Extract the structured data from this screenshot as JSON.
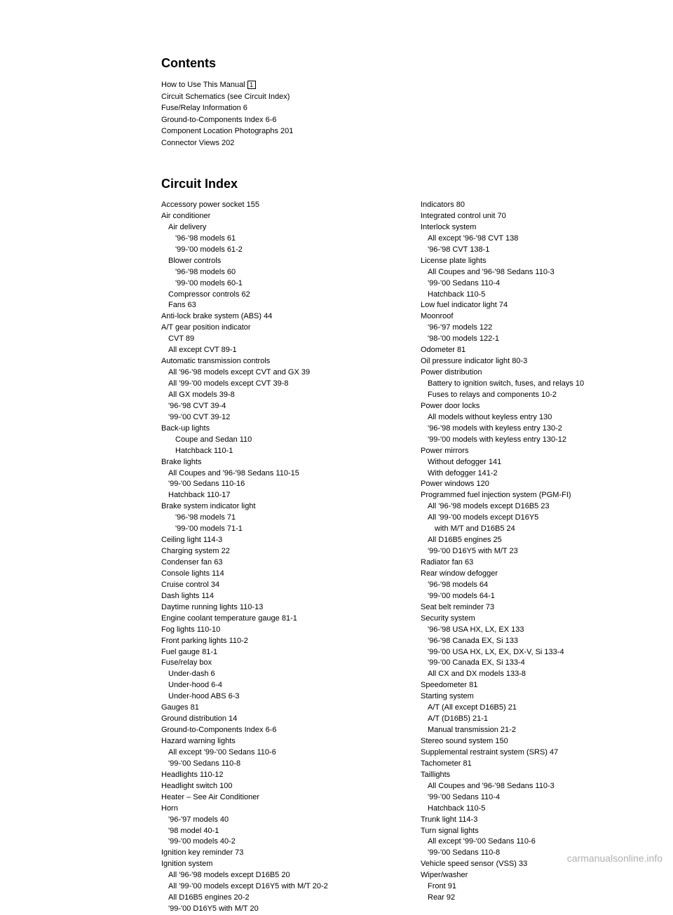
{
  "contents": {
    "heading": "Contents",
    "lines": [
      {
        "text": "How to Use This Manual",
        "hasBox": true,
        "boxText": "1"
      },
      {
        "text": "Circuit Schematics (see Circuit Index)"
      },
      {
        "text": "Fuse/Relay Information   6"
      },
      {
        "text": "Ground-to-Components Index   6-6"
      },
      {
        "text": "Component Location Photographs   201"
      },
      {
        "text": "Connector Views   202"
      }
    ]
  },
  "circuit": {
    "heading": "Circuit Index",
    "leftColumn": [
      {
        "text": "Accessory power socket   155",
        "indent": 0
      },
      {
        "text": "Air conditioner",
        "indent": 0
      },
      {
        "text": "Air delivery",
        "indent": 1
      },
      {
        "text": "'96-'98 models   61",
        "indent": 2
      },
      {
        "text": "'99-'00 models   61-2",
        "indent": 2
      },
      {
        "text": "Blower controls",
        "indent": 1
      },
      {
        "text": "'96-'98 models   60",
        "indent": 2
      },
      {
        "text": "'99-'00 models   60-1",
        "indent": 2
      },
      {
        "text": "Compressor controls   62",
        "indent": 1
      },
      {
        "text": "Fans   63",
        "indent": 1
      },
      {
        "text": "Anti-lock brake system (ABS)   44",
        "indent": 0
      },
      {
        "text": "A/T gear position indicator",
        "indent": 0
      },
      {
        "text": "CVT   89",
        "indent": 1
      },
      {
        "text": "All except CVT   89-1",
        "indent": 1
      },
      {
        "text": "Automatic transmission controls",
        "indent": 0
      },
      {
        "text": "All '96-'98 models except CVT and GX   39",
        "indent": 1
      },
      {
        "text": "All '99-'00 models except CVT   39-8",
        "indent": 1
      },
      {
        "text": "All GX models   39-8",
        "indent": 1
      },
      {
        "text": "'96-'98 CVT   39-4",
        "indent": 1
      },
      {
        "text": "'99-'00 CVT   39-12",
        "indent": 1
      },
      {
        "text": "Back-up lights",
        "indent": 0
      },
      {
        "text": "Coupe and Sedan   110",
        "indent": 2
      },
      {
        "text": "Hatchback   110-1",
        "indent": 2
      },
      {
        "text": "Brake lights",
        "indent": 0
      },
      {
        "text": "All Coupes and '96-'98 Sedans   110-15",
        "indent": 1
      },
      {
        "text": "'99-'00 Sedans   110-16",
        "indent": 1
      },
      {
        "text": "Hatchback   110-17",
        "indent": 1
      },
      {
        "text": "Brake system indicator light",
        "indent": 0
      },
      {
        "text": "'96-'98 models   71",
        "indent": 2
      },
      {
        "text": "'99-'00 models   71-1",
        "indent": 2
      },
      {
        "text": "Ceiling light   114-3",
        "indent": 0
      },
      {
        "text": "Charging system   22",
        "indent": 0
      },
      {
        "text": "Condenser fan   63",
        "indent": 0
      },
      {
        "text": "Console lights   114",
        "indent": 0
      },
      {
        "text": "Cruise control   34",
        "indent": 0
      },
      {
        "text": "Dash lights   114",
        "indent": 0
      },
      {
        "text": "Daytime running lights   110-13",
        "indent": 0
      },
      {
        "text": "Engine coolant temperature gauge   81-1",
        "indent": 0
      },
      {
        "text": "Fog lights   110-10",
        "indent": 0
      },
      {
        "text": "Front parking lights   110-2",
        "indent": 0
      },
      {
        "text": "Fuel gauge   81-1",
        "indent": 0
      },
      {
        "text": "Fuse/relay box",
        "indent": 0
      },
      {
        "text": "Under-dash   6",
        "indent": 1
      },
      {
        "text": "Under-hood   6-4",
        "indent": 1
      },
      {
        "text": "Under-hood ABS   6-3",
        "indent": 1
      },
      {
        "text": "Gauges   81",
        "indent": 0
      },
      {
        "text": "Ground distribution   14",
        "indent": 0
      },
      {
        "text": "Ground-to-Components Index   6-6",
        "indent": 0
      },
      {
        "text": "Hazard warning lights",
        "indent": 0
      },
      {
        "text": "All except '99-'00 Sedans   110-6",
        "indent": 1
      },
      {
        "text": "'99-'00 Sedans   110-8",
        "indent": 1
      },
      {
        "text": "Headlights   110-12",
        "indent": 0
      },
      {
        "text": "Headlight switch   100",
        "indent": 0
      },
      {
        "text": "Heater – See Air Conditioner",
        "indent": 0
      },
      {
        "text": "Horn",
        "indent": 0
      },
      {
        "text": "'96-'97 models   40",
        "indent": 1
      },
      {
        "text": "'98 model   40-1",
        "indent": 1
      },
      {
        "text": "'99-'00 models   40-2",
        "indent": 1
      },
      {
        "text": "Ignition key reminder   73",
        "indent": 0
      },
      {
        "text": "Ignition system",
        "indent": 0
      },
      {
        "text": "All '96-'98 models except D16B5   20",
        "indent": 1
      },
      {
        "text": "All '99-'00 models except D16Y5 with M/T   20-2",
        "indent": 1
      },
      {
        "text": "All D16B5 engines   20-2",
        "indent": 1
      },
      {
        "text": "'99-'00 D16Y5 with M/T   20",
        "indent": 1
      }
    ],
    "rightColumn": [
      {
        "text": "Indicators   80",
        "indent": 0
      },
      {
        "text": "Integrated control unit   70",
        "indent": 0
      },
      {
        "text": "Interlock system",
        "indent": 0
      },
      {
        "text": "All except '96-'98 CVT   138",
        "indent": 1
      },
      {
        "text": "'96-'98 CVT   138-1",
        "indent": 1
      },
      {
        "text": "License plate lights",
        "indent": 0
      },
      {
        "text": "All Coupes and '96-'98 Sedans   110-3",
        "indent": 1
      },
      {
        "text": "'99-'00 Sedans   110-4",
        "indent": 1
      },
      {
        "text": "Hatchback   110-5",
        "indent": 1
      },
      {
        "text": "Low fuel indicator light   74",
        "indent": 0
      },
      {
        "text": "Moonroof",
        "indent": 0
      },
      {
        "text": "'96-'97 models   122",
        "indent": 1
      },
      {
        "text": "'98-'00 models   122-1",
        "indent": 1
      },
      {
        "text": "Odometer   81",
        "indent": 0
      },
      {
        "text": "Oil pressure indicator light   80-3",
        "indent": 0
      },
      {
        "text": "Power distribution",
        "indent": 0
      },
      {
        "text": "Battery to ignition switch, fuses, and relays   10",
        "indent": 1
      },
      {
        "text": "Fuses to relays and components   10-2",
        "indent": 1
      },
      {
        "text": "Power door locks",
        "indent": 0
      },
      {
        "text": "All models without keyless entry   130",
        "indent": 1
      },
      {
        "text": "'96-'98 models with keyless entry   130-2",
        "indent": 1
      },
      {
        "text": "'99-'00 models with keyless entry   130-12",
        "indent": 1
      },
      {
        "text": "Power mirrors",
        "indent": 0
      },
      {
        "text": "Without defogger   141",
        "indent": 1
      },
      {
        "text": "With defogger   141-2",
        "indent": 1
      },
      {
        "text": "Power windows   120",
        "indent": 0
      },
      {
        "text": "Programmed fuel injection system (PGM-FI)",
        "indent": 0
      },
      {
        "text": "All '96-'98 models except D16B5   23",
        "indent": 1
      },
      {
        "text": "All '99-'00 models except D16Y5",
        "indent": 1
      },
      {
        "text": "with M/T and D16B5   24",
        "indent": 2
      },
      {
        "text": "All D16B5 engines   25",
        "indent": 1
      },
      {
        "text": "'99-'00 D16Y5 with M/T   23",
        "indent": 1
      },
      {
        "text": "Radiator fan   63",
        "indent": 0
      },
      {
        "text": "Rear window defogger",
        "indent": 0
      },
      {
        "text": "'96-'98 models   64",
        "indent": 1
      },
      {
        "text": "'99-'00 models   64-1",
        "indent": 1
      },
      {
        "text": "Seat belt reminder   73",
        "indent": 0
      },
      {
        "text": "Security system",
        "indent": 0
      },
      {
        "text": "'96-'98 USA HX, LX, EX   133",
        "indent": 1
      },
      {
        "text": "'96-'98 Canada EX, Si   133",
        "indent": 1
      },
      {
        "text": "'99-'00 USA HX, LX, EX, DX-V, Si   133-4",
        "indent": 1
      },
      {
        "text": "'99-'00 Canada EX, Si   133-4",
        "indent": 1
      },
      {
        "text": "All CX and DX models   133-8",
        "indent": 1
      },
      {
        "text": "Speedometer   81",
        "indent": 0
      },
      {
        "text": "Starting system",
        "indent": 0
      },
      {
        "text": "A/T (All except D16B5)   21",
        "indent": 1
      },
      {
        "text": "A/T (D16B5)   21-1",
        "indent": 1
      },
      {
        "text": "Manual transmission   21-2",
        "indent": 1
      },
      {
        "text": "Stereo sound system   150",
        "indent": 0
      },
      {
        "text": "Supplemental restraint system (SRS)   47",
        "indent": 0
      },
      {
        "text": "Tachometer   81",
        "indent": 0
      },
      {
        "text": "Taillights",
        "indent": 0
      },
      {
        "text": "All Coupes and '96-'98 Sedans   110-3",
        "indent": 1
      },
      {
        "text": "'99-'00 Sedans   110-4",
        "indent": 1
      },
      {
        "text": "Hatchback   110-5",
        "indent": 1
      },
      {
        "text": "Trunk light   114-3",
        "indent": 0
      },
      {
        "text": "Turn signal lights",
        "indent": 0
      },
      {
        "text": "All except '99-'00 Sedans   110-6",
        "indent": 1
      },
      {
        "text": "'99-'00 Sedans   110-8",
        "indent": 1
      },
      {
        "text": "Vehicle speed sensor (VSS)   33",
        "indent": 0
      },
      {
        "text": "Wiper/washer",
        "indent": 0
      },
      {
        "text": "Front   91",
        "indent": 1
      },
      {
        "text": "Rear   92",
        "indent": 1
      }
    ]
  },
  "watermark": "carmanualsonline.info"
}
